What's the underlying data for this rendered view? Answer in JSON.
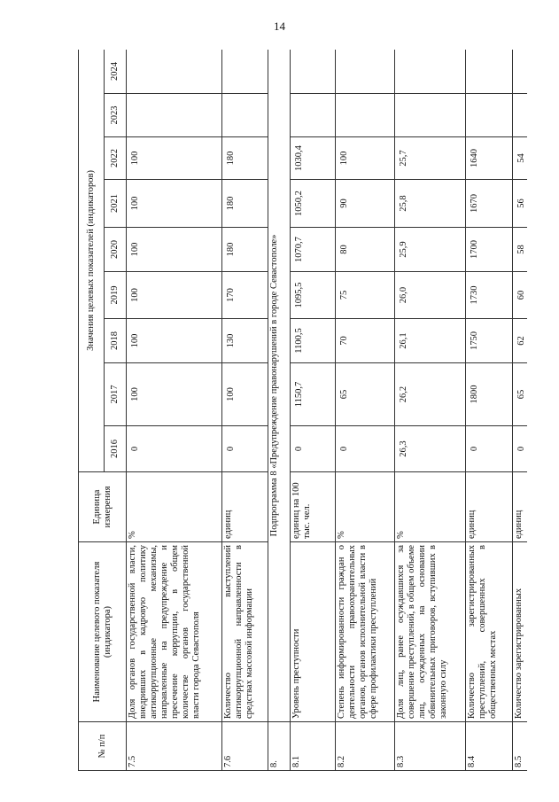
{
  "page_number": "14",
  "header": {
    "num": "№ п/п",
    "name": "Наименование целевого показателя (индикатора)",
    "unit": "Единица измерения",
    "values_group": "Значения целевых показателей (индикаторов)",
    "years": [
      "2016",
      "2017",
      "2018",
      "2019",
      "2020",
      "2021",
      "2022",
      "2023",
      "2024"
    ]
  },
  "rows": [
    {
      "num": "7.5",
      "name": "Доля органов государственной власти, внедривших в кадровую политику антикоррупционные механизмы, направленные на предупреждение и пресечение коррупции, в общем количестве органов государственной власти города Севастополя",
      "unit": "%",
      "values": [
        "0",
        "100",
        "100",
        "100",
        "100",
        "100",
        "100",
        "",
        ""
      ]
    },
    {
      "num": "7.6",
      "name": "Количество выступлений антикоррупционной направленности в средствах массовой информации",
      "unit": "единиц",
      "values": [
        "0",
        "100",
        "130",
        "170",
        "180",
        "180",
        "180",
        "",
        ""
      ]
    },
    {
      "num": "8.",
      "subheading": "Подпрограмма 8 «Предупреждение правонарушений в городе Севастополе»"
    },
    {
      "num": "8.1",
      "name": "Уровень преступности",
      "unit": "единиц на 100 тыс. чел.",
      "values": [
        "0",
        "1150,7",
        "1100,5",
        "1095,5",
        "1070,7",
        "1050,2",
        "1030,4",
        "",
        ""
      ]
    },
    {
      "num": "8.2",
      "name": "Степень информированности граждан о деятельности правоохранительных органов, органов исполнительной власти в сфере профилактики преступлений",
      "unit": "%",
      "values": [
        "0",
        "65",
        "70",
        "75",
        "80",
        "90",
        "100",
        "",
        ""
      ]
    },
    {
      "num": "8.3",
      "name": "Доля лиц, ранее осуждавшихся за совершение преступлений, в общем объеме лиц, осужденных на основании обвинительных приговоров, вступивших в законную силу",
      "unit": "%",
      "values": [
        "26,3",
        "26,2",
        "26,1",
        "26,0",
        "25,9",
        "25,8",
        "25,7",
        "",
        ""
      ]
    },
    {
      "num": "8.4",
      "name": "Количество зарегистрированных преступлений, совершенных в общественных местах",
      "unit": "единиц",
      "values": [
        "0",
        "1800",
        "1750",
        "1730",
        "1700",
        "1670",
        "1640",
        "",
        ""
      ]
    },
    {
      "num": "8.5",
      "name": "Количество зарегистрированных",
      "unit": "единиц",
      "values": [
        "0",
        "65",
        "62",
        "60",
        "58",
        "56",
        "54",
        "",
        ""
      ]
    }
  ]
}
